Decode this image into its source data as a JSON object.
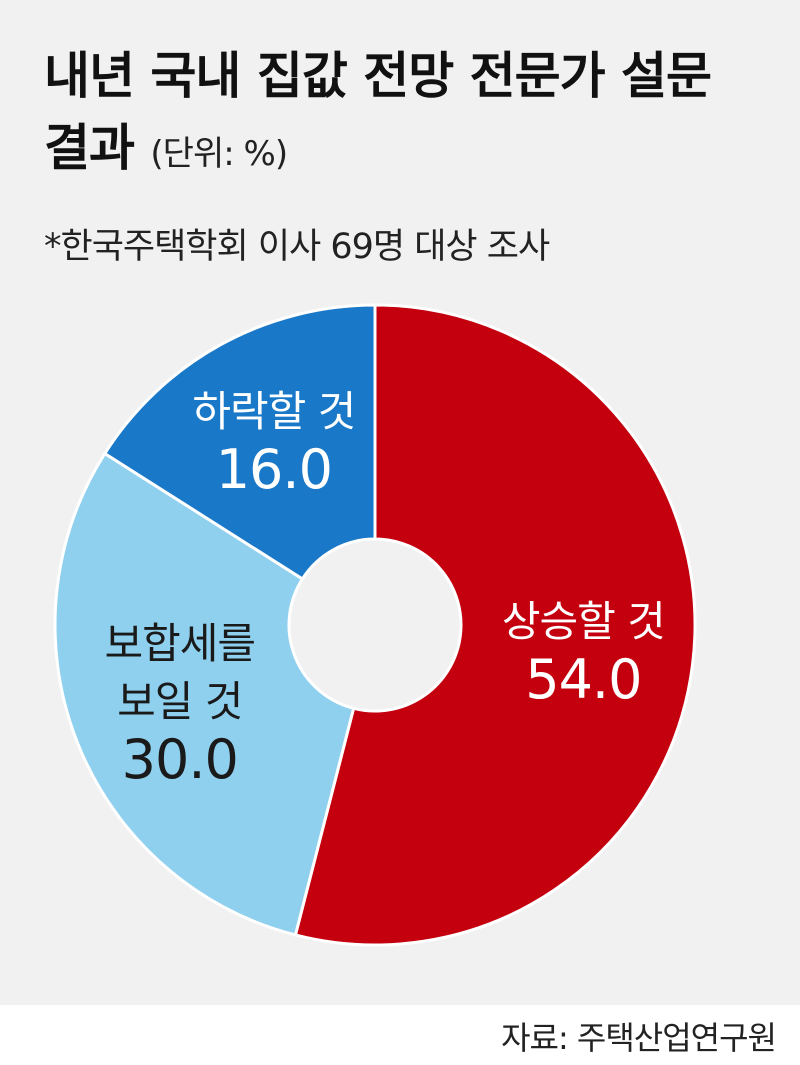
{
  "chart_data": {
    "type": "donut",
    "title": "내년 국내 집값 전망 전문가 설문 결과",
    "subtitle": "(단위: %)",
    "note": "*한국주택학회 이사 69명 대상 조사",
    "source": "자료: 주택산업연구원",
    "categories": [
      "상승할 것",
      "보합세를 보일 것",
      "하락할 것"
    ],
    "values": [
      54,
      30,
      16
    ],
    "value_labels": [
      "54.0",
      "30.0",
      "16.0"
    ],
    "colors": [
      "#c4000f",
      "#8fd0ef",
      "#1a78c8"
    ]
  }
}
